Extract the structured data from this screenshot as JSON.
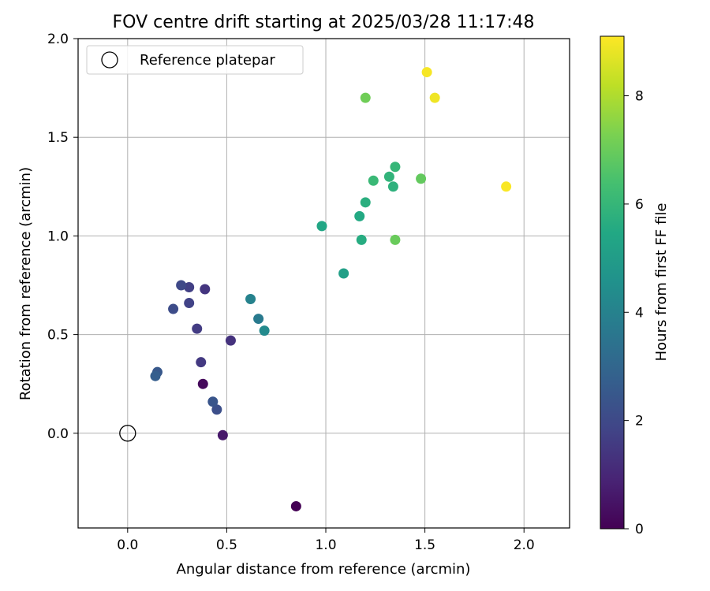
{
  "chart_data": {
    "type": "scatter",
    "title": "FOV centre drift starting at 2025/03/28 11:17:48",
    "xlabel": "Angular distance from reference (arcmin)",
    "ylabel": "Rotation from reference (arcmin)",
    "xlim": [
      -0.25,
      2.23
    ],
    "ylim": [
      -0.48,
      2.0
    ],
    "xticks": [
      0.0,
      0.5,
      1.0,
      1.5,
      2.0
    ],
    "xtick_labels": [
      "0.0",
      "0.5",
      "1.0",
      "1.5",
      "2.0"
    ],
    "yticks": [
      0.0,
      0.5,
      1.0,
      1.5,
      2.0
    ],
    "ytick_labels": [
      "0.0",
      "0.5",
      "1.0",
      "1.5",
      "2.0"
    ],
    "grid": true,
    "legend_position": "top-left",
    "legend_label": "Reference platepar",
    "reference_point": {
      "x": 0.0,
      "y": 0.0
    },
    "colorbar": {
      "label": "Hours from first FF file",
      "range": [
        0,
        9.1
      ],
      "ticks": [
        0,
        2,
        4,
        6,
        8
      ],
      "tick_labels": [
        "0",
        "2",
        "4",
        "6",
        "8"
      ],
      "colormap": "viridis"
    },
    "points": [
      {
        "x": 0.85,
        "y": -0.37,
        "c": 0.0
      },
      {
        "x": 0.38,
        "y": 0.25,
        "c": 0.2
      },
      {
        "x": 0.48,
        "y": -0.01,
        "c": 0.6
      },
      {
        "x": 0.52,
        "y": 0.47,
        "c": 1.3
      },
      {
        "x": 0.39,
        "y": 0.73,
        "c": 1.4
      },
      {
        "x": 0.37,
        "y": 0.36,
        "c": 1.5
      },
      {
        "x": 0.35,
        "y": 0.53,
        "c": 1.6
      },
      {
        "x": 0.31,
        "y": 0.74,
        "c": 1.7
      },
      {
        "x": 0.31,
        "y": 0.66,
        "c": 1.8
      },
      {
        "x": 0.27,
        "y": 0.75,
        "c": 2.0
      },
      {
        "x": 0.23,
        "y": 0.63,
        "c": 2.1
      },
      {
        "x": 0.45,
        "y": 0.12,
        "c": 2.2
      },
      {
        "x": 0.43,
        "y": 0.16,
        "c": 2.4
      },
      {
        "x": 0.15,
        "y": 0.31,
        "c": 2.5
      },
      {
        "x": 0.14,
        "y": 0.29,
        "c": 2.7
      },
      {
        "x": 0.66,
        "y": 0.58,
        "c": 3.7
      },
      {
        "x": 0.62,
        "y": 0.68,
        "c": 4.0
      },
      {
        "x": 0.69,
        "y": 0.52,
        "c": 4.3
      },
      {
        "x": 1.09,
        "y": 0.81,
        "c": 5.1
      },
      {
        "x": 0.98,
        "y": 1.05,
        "c": 5.4
      },
      {
        "x": 1.17,
        "y": 1.1,
        "c": 5.5
      },
      {
        "x": 1.18,
        "y": 0.98,
        "c": 5.6
      },
      {
        "x": 1.2,
        "y": 1.17,
        "c": 5.7
      },
      {
        "x": 1.34,
        "y": 1.25,
        "c": 5.8
      },
      {
        "x": 1.32,
        "y": 1.3,
        "c": 5.9
      },
      {
        "x": 1.35,
        "y": 1.35,
        "c": 6.0
      },
      {
        "x": 1.24,
        "y": 1.28,
        "c": 6.1
      },
      {
        "x": 1.48,
        "y": 1.29,
        "c": 6.9
      },
      {
        "x": 1.35,
        "y": 0.98,
        "c": 7.0
      },
      {
        "x": 1.2,
        "y": 1.7,
        "c": 7.1
      },
      {
        "x": 1.55,
        "y": 1.7,
        "c": 8.9
      },
      {
        "x": 1.51,
        "y": 1.83,
        "c": 9.0
      },
      {
        "x": 1.91,
        "y": 1.25,
        "c": 9.05
      }
    ]
  }
}
